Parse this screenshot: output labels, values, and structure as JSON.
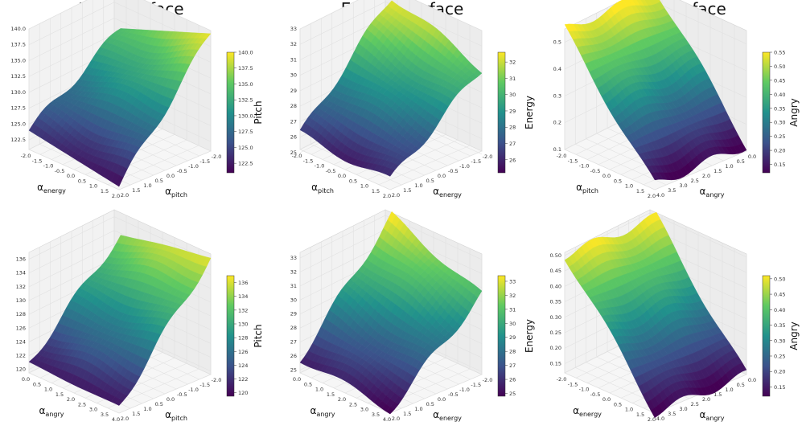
{
  "column_titles": [
    "Pitch Surface",
    "Energy Surface",
    "Angry Surface"
  ],
  "colormap": [
    "#440154",
    "#3b528b",
    "#21918c",
    "#5ec962",
    "#fde725"
  ],
  "chart_data": [
    {
      "type": "surface3d",
      "title": "Pitch Surface",
      "xlabel": "α_energy",
      "ylabel": "α_pitch",
      "zlabel": "",
      "colorbar_label": "Pitch",
      "x_ticks": [
        "-2.0",
        "-1.5",
        "-1.0",
        "-0.5",
        "0.0",
        "0.5",
        "1.0",
        "1.5",
        "2.0"
      ],
      "y_ticks": [
        "2.0",
        "1.5",
        "1.0",
        "0.5",
        "0.0",
        "-0.5",
        "-1.0",
        "-1.5",
        "-2.0"
      ],
      "z_ticks": [
        "122.5",
        "125.0",
        "127.5",
        "130.0",
        "132.5",
        "135.0",
        "137.5",
        "140.0"
      ],
      "cb_ticks": [
        "122.5",
        "125.0",
        "127.5",
        "130.0",
        "132.5",
        "135.0",
        "137.5",
        "140.0"
      ],
      "zlim": [
        121,
        140
      ],
      "cblim": [
        121,
        140
      ],
      "corner_values": {
        "front": 121.5,
        "left": 124.0,
        "right": 139.5,
        "back": 134.0
      }
    },
    {
      "type": "surface3d",
      "title": "Energy Surface",
      "xlabel": "α_pitch",
      "ylabel": "α_energy",
      "zlabel": "",
      "colorbar_label": "Energy",
      "x_ticks": [
        "-2.0",
        "-1.5",
        "-1.0",
        "-0.5",
        "0.0",
        "0.5",
        "1.0",
        "1.5",
        "2.0"
      ],
      "y_ticks": [
        "2.0",
        "1.5",
        "1.0",
        "0.5",
        "0.0",
        "-0.5",
        "-1.0",
        "-1.5",
        "-2.0"
      ],
      "z_ticks": [
        "25",
        "26",
        "27",
        "28",
        "29",
        "30",
        "31",
        "32",
        "33"
      ],
      "cb_ticks": [
        "26",
        "27",
        "28",
        "29",
        "30",
        "31",
        "32"
      ],
      "zlim": [
        25.2,
        33
      ],
      "cblim": [
        25.2,
        32.6
      ],
      "corner_values": {
        "front": 25.8,
        "left": 26.2,
        "right": 30.5,
        "back": 32.6
      }
    },
    {
      "type": "surface3d",
      "title": "Angry Surface",
      "xlabel": "α_pitch",
      "ylabel": "α_angry",
      "zlabel": "",
      "colorbar_label": "Angry",
      "x_ticks": [
        "-2.0",
        "-1.5",
        "-1.0",
        "-0.5",
        "0.0",
        "0.5",
        "1.0",
        "1.5",
        "2.0"
      ],
      "y_ticks": [
        "4.0",
        "3.5",
        "3.0",
        "2.5",
        "2.0",
        "1.5",
        "1.0",
        "0.5",
        "0.0"
      ],
      "z_ticks": [
        "0.1",
        "0.2",
        "0.3",
        "0.4",
        "0.5"
      ],
      "cb_ticks": [
        "0.15",
        "0.20",
        "0.25",
        "0.30",
        "0.35",
        "0.40",
        "0.45",
        "0.50",
        "0.55"
      ],
      "zlim": [
        0.1,
        0.55
      ],
      "cblim": [
        0.12,
        0.55
      ],
      "corner_values": {
        "front": 0.12,
        "left": 0.55,
        "right": 0.12,
        "back": 0.55
      }
    },
    {
      "type": "surface3d",
      "title": "",
      "xlabel": "α_angry",
      "ylabel": "α_pitch",
      "zlabel": "",
      "colorbar_label": "Pitch",
      "x_ticks": [
        "0.0",
        "0.5",
        "1.0",
        "1.5",
        "2.0",
        "2.5",
        "3.0",
        "3.5",
        "4.0"
      ],
      "y_ticks": [
        "2.0",
        "1.5",
        "1.0",
        "0.5",
        "0.0",
        "-0.5",
        "-1.0",
        "-1.5",
        "-2.0"
      ],
      "z_ticks": [
        "120",
        "122",
        "124",
        "126",
        "128",
        "130",
        "132",
        "134",
        "136"
      ],
      "cb_ticks": [
        "120",
        "122",
        "124",
        "126",
        "128",
        "130",
        "132",
        "134",
        "136"
      ],
      "zlim": [
        119.5,
        137
      ],
      "cblim": [
        119.5,
        137
      ],
      "corner_values": {
        "front": 120.5,
        "left": 121.0,
        "right": 136.5,
        "back": 134.0
      }
    },
    {
      "type": "surface3d",
      "title": "",
      "xlabel": "α_angry",
      "ylabel": "α_energy",
      "zlabel": "",
      "colorbar_label": "Energy",
      "x_ticks": [
        "0.0",
        "0.5",
        "1.0",
        "1.5",
        "2.0",
        "2.5",
        "3.0",
        "3.5",
        "4.0"
      ],
      "y_ticks": [
        "2.0",
        "1.5",
        "1.0",
        "0.5",
        "0.0",
        "-0.5",
        "-1.0",
        "-1.5",
        "-2.0"
      ],
      "z_ticks": [
        "25",
        "26",
        "27",
        "28",
        "29",
        "30",
        "31",
        "32",
        "33"
      ],
      "cb_ticks": [
        "25",
        "26",
        "27",
        "28",
        "29",
        "30",
        "31",
        "32",
        "33"
      ],
      "zlim": [
        24.8,
        33.4
      ],
      "cblim": [
        24.8,
        33.4
      ],
      "corner_values": {
        "front": 25.0,
        "left": 25.8,
        "right": 30.5,
        "back": 33.3
      }
    },
    {
      "type": "surface3d",
      "title": "",
      "xlabel": "α_energy",
      "ylabel": "α_angry",
      "zlabel": "",
      "colorbar_label": "Angry",
      "x_ticks": [
        "-2.0",
        "-1.5",
        "-1.0",
        "-0.5",
        "0.0",
        "0.5",
        "1.0",
        "1.5",
        "2.0"
      ],
      "y_ticks": [
        "4.0",
        "3.5",
        "3.0",
        "2.5",
        "2.0",
        "1.5",
        "1.0",
        "0.5",
        "0.0"
      ],
      "z_ticks": [
        "0.15",
        "0.20",
        "0.25",
        "0.30",
        "0.35",
        "0.40",
        "0.45",
        "0.50"
      ],
      "cb_ticks": [
        "0.15",
        "0.20",
        "0.25",
        "0.30",
        "0.35",
        "0.40",
        "0.45",
        "0.50"
      ],
      "zlim": [
        0.12,
        0.51
      ],
      "cblim": [
        0.12,
        0.51
      ],
      "corner_values": {
        "front": 0.12,
        "left": 0.5,
        "right": 0.12,
        "back": 0.5
      }
    }
  ]
}
